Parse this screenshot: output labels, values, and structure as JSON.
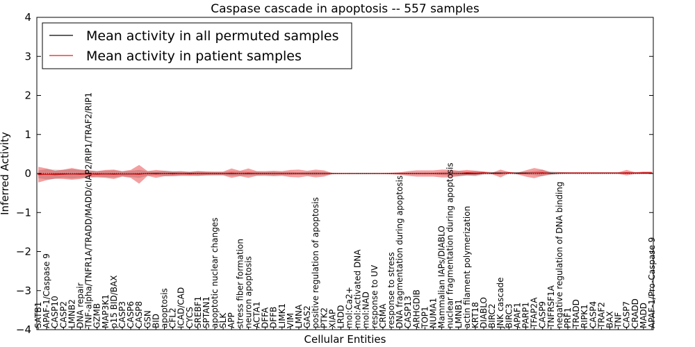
{
  "chart_data": {
    "type": "line",
    "title": "Caspase cascade in apoptosis -- 557 samples",
    "xlabel": "Cellular Entities",
    "ylabel": "Inferred Activity",
    "ylim": [
      -4,
      4
    ],
    "yticks": [
      -4,
      -3,
      -2,
      -1,
      0,
      1,
      2,
      3,
      4
    ],
    "ytick_labels": [
      "−4",
      "−3",
      "−2",
      "−1",
      "0",
      "1",
      "2",
      "3",
      "4"
    ],
    "grid": false,
    "legend_position": "top-left",
    "categories": [
      "SATB1",
      "APAF-1/Caspase 9",
      "CASP10",
      "CASP2",
      "LMNB2",
      "DNA repair",
      "TNF-alpha/TNFR1A/TRADD/MADD/cIAP2/RIP1/TRAF2/RIP1",
      "GZMB",
      "MAP3K1",
      "p15 BID/BAX",
      "CASP3",
      "CASP6",
      "CASP8",
      "GSN",
      "BID",
      "apoptosis",
      "CFL2",
      "ICAD/CAD",
      "CYCS",
      "SREBF1",
      "SPTAN1",
      "apoptotic nuclear changes",
      "SLK",
      "APP",
      "stress fiber formation",
      "neuron apoptosis",
      "ACTA1",
      "DFFA",
      "DFFB",
      "LIMK1",
      "VIM",
      "LMNA",
      "GAS2",
      "positive regulation of apoptosis",
      "PTK2",
      "XIAP",
      "LRDD",
      "mol:Ca2+",
      "mol:Activated DNA",
      "mol:NAD",
      "response to UV",
      "CRMA",
      "response to stress",
      "DNA fragmentation during apoptosis",
      "CASP13",
      "ARHGDIB",
      "TOP1",
      "NUMA1",
      "Mammalian IAPs/DIABLO",
      "nuclear fragmentation during apoptosis",
      "LMNB1",
      "actin filament polymerization",
      "KRT18",
      "DIABLO",
      "BIRC2",
      "JNK cascade",
      "BIRC3",
      "APAF1",
      "PARP1",
      "TFAP2A",
      "CASP9",
      "TNFRSF1A",
      "negative regulation of DNA binding",
      "PRF1",
      "TRADD",
      "RIPK1",
      "CASP4",
      "TRAF2",
      "BAX",
      "TNF",
      "CASP7",
      "CRADD",
      "MADD",
      "APAF-1/Pro-Caspase 9"
    ],
    "series": [
      {
        "name": "Mean activity in all permuted samples",
        "color": "#000000",
        "values": [
          -0.02,
          -0.02,
          -0.02,
          -0.01,
          -0.01,
          -0.01,
          -0.01,
          -0.01,
          -0.01,
          -0.01,
          -0.01,
          -0.01,
          -0.01,
          0,
          0,
          0,
          0,
          0,
          0,
          0,
          0,
          0,
          0,
          0,
          0,
          0,
          0,
          0,
          0,
          0,
          0,
          0,
          0,
          0,
          0,
          0,
          0,
          0,
          0,
          0,
          0,
          0,
          0,
          0,
          0,
          0,
          0,
          0,
          0,
          0,
          0,
          0,
          0,
          0.01,
          0.01,
          0.01,
          0.01,
          0.01,
          0.01,
          0.01,
          0.01,
          0.01,
          0.01,
          0.01,
          0.01,
          0.01,
          0.01,
          0.01,
          0.01,
          0.01,
          0.01,
          0.01,
          0.01,
          0.01
        ],
        "band": [
          0.1,
          0.13,
          0.12,
          0.1,
          0.12,
          0.1,
          0.09,
          0.07,
          0.08,
          0.09,
          0.06,
          0.08,
          0.1,
          0.06,
          0.05,
          0.07,
          0.06,
          0.05,
          0.05,
          0.06,
          0.05,
          0.04,
          0.04,
          0.06,
          0.06,
          0.05,
          0.05,
          0.04,
          0.05,
          0.04,
          0.04,
          0.03,
          0.04,
          0.05,
          0.04,
          0.02,
          0.01,
          0.01,
          0.01,
          0.01,
          0.01,
          0.01,
          0.01,
          0.02,
          0.02,
          0.02,
          0.02,
          0.02,
          0.04,
          0.05,
          0.07,
          0.05,
          0.07,
          0.04,
          0.03,
          0.03,
          0.03,
          0.03,
          0.03,
          0.05,
          0.08,
          0.04,
          0.03,
          0.02,
          0.02,
          0.02,
          0.02,
          0.02,
          0.02,
          0.02,
          0.02,
          0.03,
          0.02,
          0.02
        ]
      },
      {
        "name": "Mean activity in patient samples",
        "color": "#e31a1c",
        "values": [
          -0.03,
          -0.02,
          -0.03,
          -0.02,
          -0.01,
          -0.02,
          -0.01,
          -0.02,
          -0.01,
          -0.02,
          -0.01,
          -0.01,
          -0.02,
          0,
          -0.01,
          0,
          -0.01,
          0,
          -0.01,
          0,
          0,
          0,
          0,
          0.01,
          0,
          0.01,
          0,
          0,
          0,
          0,
          0,
          0,
          0,
          0,
          0,
          0,
          0,
          0,
          0,
          0,
          0,
          0,
          0,
          0,
          0,
          0,
          0,
          0,
          0,
          0,
          0,
          0.02,
          0.01,
          0.02,
          0,
          0,
          0.02,
          0,
          0,
          0.01,
          0.02,
          0,
          0.01,
          0.01,
          0.01,
          0.01,
          0.01,
          0.01,
          0.01,
          0.01,
          0.02,
          0.01,
          0.02,
          0.02
        ],
        "band": [
          0.2,
          0.15,
          0.1,
          0.12,
          0.15,
          0.12,
          0.09,
          0.08,
          0.1,
          0.12,
          0.07,
          0.1,
          0.24,
          0.06,
          0.1,
          0.07,
          0.06,
          0.06,
          0.05,
          0.06,
          0.05,
          0.05,
          0.05,
          0.12,
          0.07,
          0.12,
          0.06,
          0.06,
          0.07,
          0.06,
          0.09,
          0.1,
          0.07,
          0.1,
          0.08,
          0.01,
          0.01,
          0.01,
          0.01,
          0.01,
          0.01,
          0.01,
          0.02,
          0.03,
          0.06,
          0.08,
          0.08,
          0.08,
          0.1,
          0.1,
          0.07,
          0.07,
          0.06,
          0.03,
          0.02,
          0.1,
          0.02,
          0.02,
          0.08,
          0.13,
          0.08,
          0.02,
          0.02,
          0.02,
          0.02,
          0.02,
          0.02,
          0.02,
          0.02,
          0.02,
          0.07,
          0.02,
          0.03,
          0.03
        ]
      }
    ]
  }
}
